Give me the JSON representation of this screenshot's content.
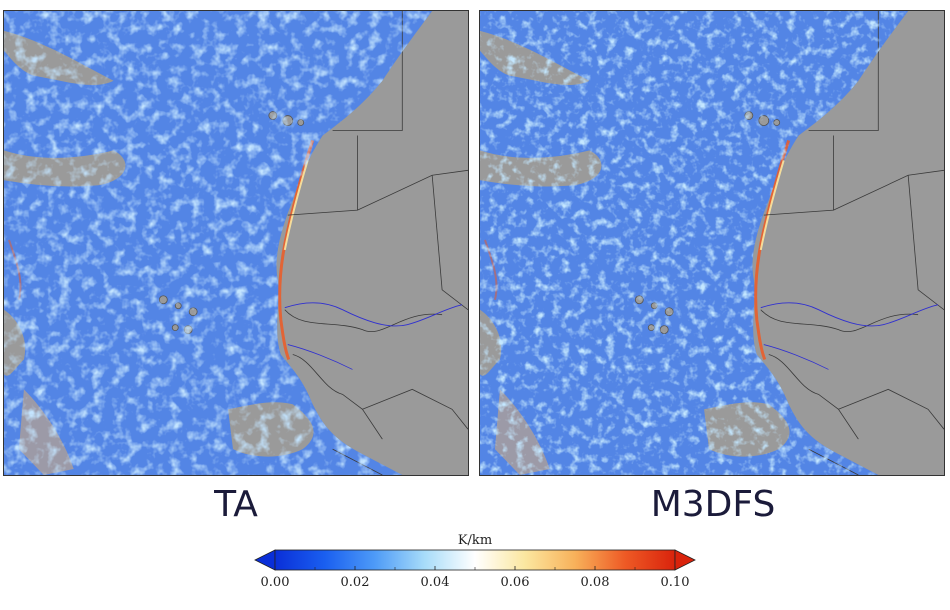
{
  "panels": [
    {
      "label": "TA"
    },
    {
      "label": "M3DFS"
    }
  ],
  "colorbar": {
    "unit": "K/km",
    "min": 0.0,
    "max": 0.1,
    "ticks": [
      "0.00",
      "0.02",
      "0.04",
      "0.06",
      "0.08",
      "0.10"
    ],
    "extend": "both",
    "colors": [
      "#0a2fd8",
      "#1a5ff0",
      "#4e9bf7",
      "#a8dcf9",
      "#ffffff",
      "#fbe7a0",
      "#f8b15a",
      "#ee5a25",
      "#d9230c"
    ]
  },
  "map_colors": {
    "land": "#9a9a9a",
    "ocean_base": "#2f6fe0",
    "border": "#3a3a3a",
    "river": "#3030d0"
  }
}
